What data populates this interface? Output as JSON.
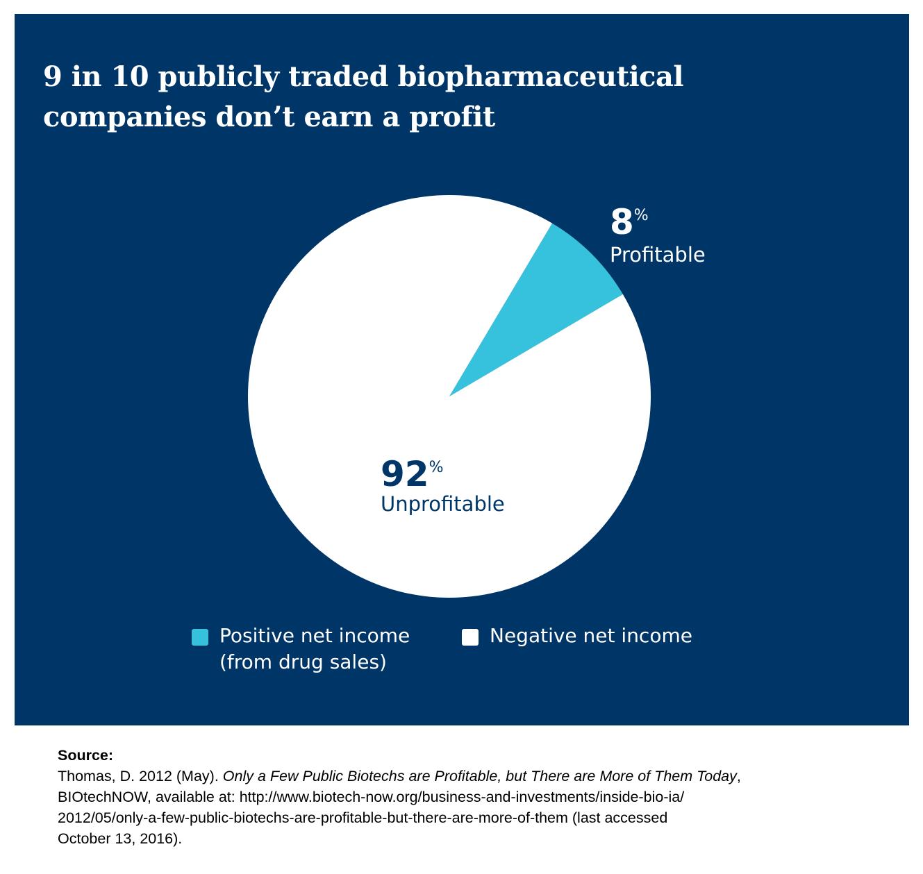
{
  "title_lines": [
    "9 in 10 publicly traded biopharmaceutical",
    "companies don’t earn a profit"
  ],
  "colors": {
    "background": "#003567",
    "positive": "#36C2DC",
    "negative": "#FFFFFF",
    "negative_label": "#003567",
    "positive_label": "#FFFFFF"
  },
  "chart_data": {
    "type": "pie",
    "slices": [
      {
        "value": 8,
        "label": "Profitable",
        "pct_text": "8",
        "pct_sign": "%",
        "color": "#36C2DC"
      },
      {
        "value": 92,
        "label": "Unprofitable",
        "pct_text": "92",
        "pct_sign": "%",
        "color": "#FFFFFF"
      }
    ],
    "legend": [
      {
        "lines": [
          "Positive net income",
          "(from drug sales)"
        ],
        "color": "#36C2DC"
      },
      {
        "lines": [
          "Negative net income"
        ],
        "color": "#FFFFFF"
      }
    ]
  },
  "source": {
    "heading": "Source:",
    "prefix": "Thomas, D. 2012 (May). ",
    "italic": "Only a Few Public Biotechs are Profitable, but There are More of Them Today",
    "line1_suffix": ",",
    "lines": [
      "BIOtechNOW, available at: http://www.biotech-now.org/business-and-investments/inside-bio-ia/",
      "2012/05/only-a-few-public-biotechs-are-profitable-but-there-are-more-of-them (last accessed",
      "October 13, 2016)."
    ]
  }
}
